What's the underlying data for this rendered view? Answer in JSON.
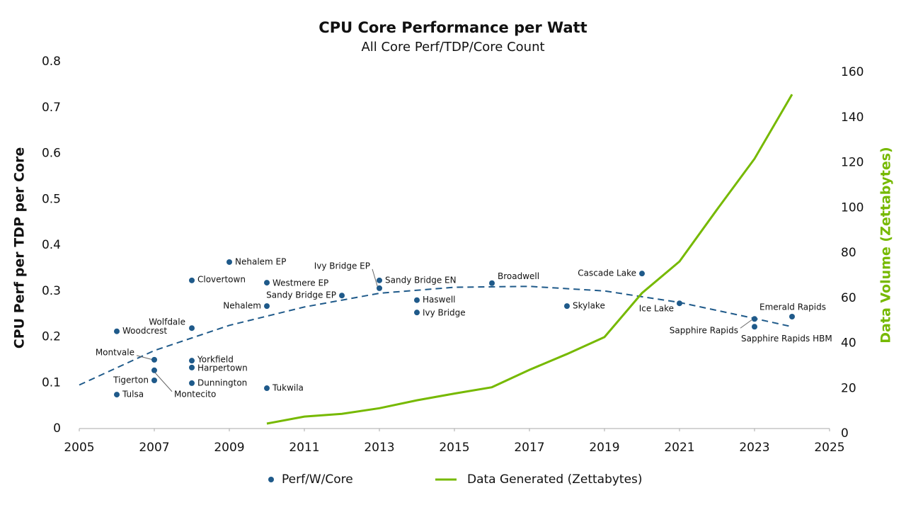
{
  "chart_data": {
    "type": "scatter",
    "title": "CPU Core Performance per Watt",
    "subtitle": "All Core Perf/TDP/Core Count",
    "y_label": "CPU Perf per TDP per Core",
    "y2_label": "Data Volume (Zettabytes)",
    "xlim": [
      2005,
      2025
    ],
    "xticks": [
      2005,
      2007,
      2009,
      2011,
      2013,
      2015,
      2017,
      2019,
      2021,
      2023,
      2025
    ],
    "ylim": [
      0,
      0.8
    ],
    "yticks": [
      0,
      0.1,
      0.2,
      0.3,
      0.4,
      0.5,
      0.6,
      0.7,
      0.8
    ],
    "y2lim": [
      0,
      160
    ],
    "y2ticks": [
      0,
      20,
      40,
      60,
      80,
      100,
      120,
      140,
      160
    ],
    "grid": false,
    "legend": "bottom",
    "series": [
      {
        "name": "Perf/W/Core",
        "type": "scatter",
        "color": "#1f5a8a",
        "x": [
          2006,
          2006,
          2007,
          2007,
          2007,
          2008,
          2008,
          2008,
          2008,
          2008,
          2009,
          2010,
          2010,
          2010,
          2012,
          2013,
          2013,
          2014,
          2014,
          2016,
          2018,
          2020,
          2021,
          2023,
          2023,
          2024
        ],
        "values": [
          0.212,
          0.074,
          0.15,
          0.127,
          0.105,
          0.219,
          0.323,
          0.148,
          0.133,
          0.099,
          0.363,
          0.318,
          0.267,
          0.088,
          0.29,
          0.323,
          0.306,
          0.28,
          0.253,
          0.317,
          0.267,
          0.338,
          0.273,
          0.239,
          0.222,
          0.244
        ],
        "labels": [
          "Woodcrest",
          "Tulsa",
          "Montvale",
          "Montecito",
          "Tigerton",
          "Wolfdale",
          "Clovertown",
          "Yorkfield",
          "Harpertown",
          "Dunnington",
          "Nehalem EP",
          "Westmere EP",
          "Nehalem",
          "Tukwila",
          "Sandy Bridge EP",
          "Sandy Bridge EN",
          "Ivy Bridge EP",
          "Haswell",
          "Ivy Bridge",
          "Broadwell",
          "Skylake",
          "Cascade Lake",
          "Ice Lake",
          "Sapphire Rapids",
          "Sapphire Rapids HBM",
          "Emerald Rapids"
        ]
      },
      {
        "name": "Data Generated (Zettabytes)",
        "type": "line",
        "axis": "y2",
        "color": "#76b900",
        "x": [
          2010,
          2011,
          2012,
          2013,
          2014,
          2015,
          2016,
          2017,
          2018,
          2019,
          2020,
          2021,
          2022,
          2023,
          2024
        ],
        "values": [
          2.2,
          5.3,
          6.5,
          9,
          12.5,
          15.5,
          18.3,
          26,
          33,
          40.5,
          60,
          74,
          97,
          119.5,
          148
        ]
      }
    ],
    "trendline": {
      "color": "#1f5a8a",
      "dashed": true,
      "x": [
        2005,
        2007,
        2009,
        2011,
        2013,
        2015,
        2017,
        2019,
        2021,
        2023,
        2024
      ],
      "values": [
        0.095,
        0.17,
        0.225,
        0.265,
        0.295,
        0.308,
        0.31,
        0.3,
        0.275,
        0.24,
        0.222
      ]
    }
  }
}
